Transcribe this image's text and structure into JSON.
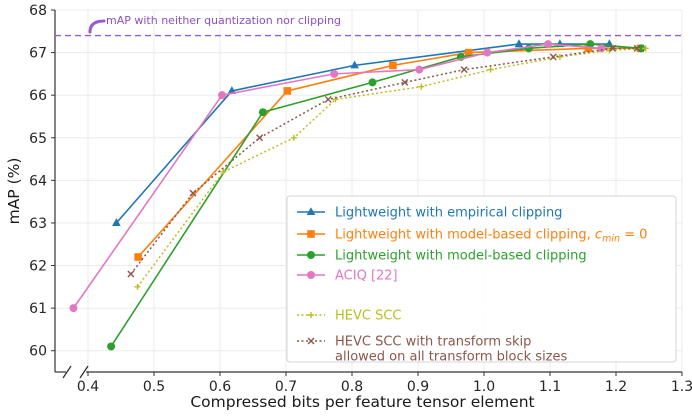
{
  "chart_data": {
    "type": "line",
    "title": "",
    "xlabel": "Compressed bits per feature tensor element",
    "ylabel": "mAP (%)",
    "xlim": [
      0.35,
      1.3
    ],
    "ylim": [
      59.5,
      68
    ],
    "xticks": [
      "0.4",
      "0.5",
      "0.6",
      "0.7",
      "0.8",
      "0.9",
      "1.0",
      "1.1",
      "1.2",
      "1.3"
    ],
    "yticks": [
      "60",
      "61",
      "62",
      "63",
      "64",
      "65",
      "66",
      "67",
      "68"
    ],
    "grid": true,
    "legend_position": "lower-right",
    "reference_line": {
      "y": 67.4,
      "label": "mAP with neither quantization nor clipping",
      "color": "#9b59d0"
    },
    "series": [
      {
        "name": "Lightweight with empirical clipping",
        "color": "#1f77b4",
        "marker": "triangle",
        "linestyle": "solid",
        "x": [
          0.443,
          0.618,
          0.804,
          1.053,
          1.115,
          1.19
        ],
        "y": [
          63.0,
          66.1,
          66.7,
          67.2,
          67.2,
          67.2
        ]
      },
      {
        "name_prefix": "Lightweight with model-based clipping, ",
        "name_math": "c",
        "name_sub": "min",
        "name_suffix": " = 0",
        "color": "#ff7f0e",
        "marker": "square",
        "linestyle": "solid",
        "x": [
          0.476,
          0.702,
          0.862,
          0.977,
          1.158,
          1.237
        ],
        "y": [
          62.2,
          66.1,
          66.7,
          67.0,
          67.1,
          67.1
        ]
      },
      {
        "name": "Lightweight with model-based clipping",
        "color": "#2ca02c",
        "marker": "circle",
        "linestyle": "solid",
        "x": [
          0.435,
          0.665,
          0.831,
          0.965,
          1.068,
          1.161,
          1.238
        ],
        "y": [
          60.1,
          65.6,
          66.3,
          66.9,
          67.1,
          67.2,
          67.1
        ]
      },
      {
        "name": "ACIQ [22]",
        "color": "#e377c2",
        "marker": "circle",
        "linestyle": "solid",
        "x": [
          0.378,
          0.603,
          0.773,
          0.902,
          1.005,
          1.097,
          1.178
        ],
        "y": [
          61.0,
          66.0,
          66.5,
          66.6,
          67.0,
          67.2,
          67.1
        ]
      },
      {
        "name": "HEVC SCC",
        "color": "#bcbd22",
        "marker": "plus",
        "linestyle": "dotted",
        "x": [
          0.475,
          0.605,
          0.712,
          0.775,
          0.905,
          1.01,
          1.115,
          1.19,
          1.245
        ],
        "y": [
          61.5,
          64.2,
          65.0,
          65.9,
          66.2,
          66.6,
          66.9,
          67.05,
          67.1
        ]
      },
      {
        "name_lines": [
          "HEVC SCC with transform skip",
          "allowed on all transform block sizes"
        ],
        "color": "#8c564b",
        "marker": "x",
        "linestyle": "dotted",
        "x": [
          0.465,
          0.559,
          0.66,
          0.764,
          0.88,
          0.97,
          1.105,
          1.195,
          1.232
        ],
        "y": [
          61.8,
          63.7,
          65.0,
          65.9,
          66.3,
          66.6,
          66.9,
          67.1,
          67.1
        ]
      }
    ]
  }
}
